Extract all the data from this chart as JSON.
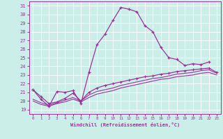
{
  "xlabel": "Windchill (Refroidissement éolien,°C)",
  "xlim": [
    -0.5,
    23.5
  ],
  "ylim": [
    18.5,
    31.5
  ],
  "yticks": [
    19,
    20,
    21,
    22,
    23,
    24,
    25,
    26,
    27,
    28,
    29,
    30,
    31
  ],
  "xticks": [
    0,
    1,
    2,
    3,
    4,
    5,
    6,
    7,
    8,
    9,
    10,
    11,
    12,
    13,
    14,
    15,
    16,
    17,
    18,
    19,
    20,
    21,
    22,
    23
  ],
  "bg_color": "#cceee8",
  "line_color": "#993399",
  "grid_color": "#ffffff",
  "line1_x": [
    0,
    1,
    2,
    3,
    4,
    5,
    6,
    7,
    8,
    9,
    10,
    11,
    12,
    13,
    14,
    15,
    16,
    17,
    18,
    19,
    20,
    21,
    22
  ],
  "line1_y": [
    21.3,
    20.2,
    19.4,
    21.1,
    21.0,
    21.2,
    19.7,
    23.3,
    26.5,
    27.7,
    29.3,
    30.8,
    30.6,
    30.3,
    28.7,
    28.0,
    26.2,
    25.0,
    24.8,
    24.1,
    24.3,
    24.2,
    24.5
  ],
  "line2_x": [
    0,
    1,
    2,
    3,
    4,
    5,
    6,
    7,
    8,
    9,
    10,
    11,
    12,
    13,
    14,
    15,
    16,
    17,
    18,
    19,
    20,
    21,
    22,
    23
  ],
  "line2_y": [
    21.3,
    20.5,
    19.7,
    19.9,
    20.3,
    20.9,
    20.0,
    21.0,
    21.5,
    21.8,
    22.0,
    22.2,
    22.4,
    22.6,
    22.8,
    22.9,
    23.1,
    23.2,
    23.4,
    23.5,
    23.6,
    23.7,
    23.8,
    23.3
  ],
  "line3_x": [
    0,
    1,
    2,
    3,
    4,
    5,
    6,
    7,
    8,
    9,
    10,
    11,
    12,
    13,
    14,
    15,
    16,
    17,
    18,
    19,
    20,
    21,
    22,
    23
  ],
  "line3_y": [
    20.2,
    19.8,
    19.5,
    19.8,
    20.1,
    20.4,
    20.0,
    20.7,
    21.1,
    21.3,
    21.5,
    21.8,
    22.0,
    22.2,
    22.4,
    22.6,
    22.7,
    22.9,
    23.1,
    23.2,
    23.3,
    23.5,
    23.6,
    23.2
  ],
  "line4_x": [
    0,
    1,
    2,
    3,
    4,
    5,
    6,
    7,
    8,
    9,
    10,
    11,
    12,
    13,
    14,
    15,
    16,
    17,
    18,
    19,
    20,
    21,
    22,
    23
  ],
  "line4_y": [
    20.0,
    19.6,
    19.4,
    19.7,
    19.9,
    20.2,
    19.9,
    20.4,
    20.8,
    21.0,
    21.2,
    21.5,
    21.7,
    21.9,
    22.1,
    22.3,
    22.5,
    22.6,
    22.8,
    22.9,
    23.0,
    23.2,
    23.3,
    23.0
  ]
}
